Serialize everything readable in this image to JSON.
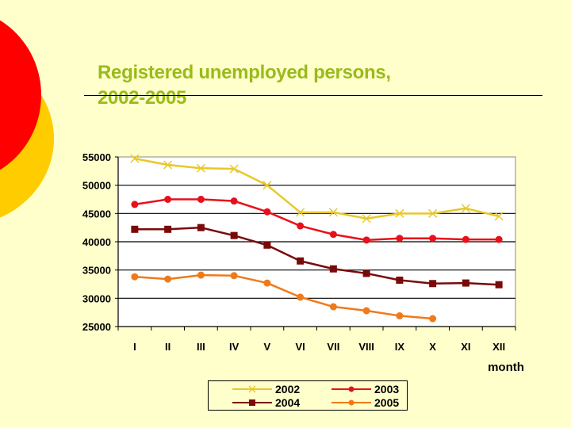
{
  "slide": {
    "title_line1": "Registered unemployed persons,",
    "title_line2": "2002-2005",
    "background_color": "#FFFFCC",
    "title_color": "#9ABB1A",
    "decor": {
      "circle_red": "#FF0000",
      "circle_gold": "#FFCC00"
    }
  },
  "chart_data": {
    "type": "line",
    "title": "Registered unemployed persons, 2002-2005",
    "xlabel": "month",
    "ylabel": "",
    "categories": [
      "I",
      "II",
      "III",
      "IV",
      "V",
      "VI",
      "VII",
      "VIII",
      "IX",
      "X",
      "XI",
      "XII"
    ],
    "ylim": [
      25000,
      55000
    ],
    "yticks": [
      25000,
      30000,
      35000,
      40000,
      45000,
      50000,
      55000
    ],
    "ytick_labels": [
      "25000",
      "30000",
      "35000",
      "40000",
      "45000",
      "50000",
      "55000"
    ],
    "grid": true,
    "legend_position": "bottom",
    "series": [
      {
        "name": "2002",
        "color": "#E8C82A",
        "marker": "x",
        "values": [
          54700,
          53600,
          53000,
          52900,
          50000,
          45200,
          45200,
          44100,
          45000,
          45000,
          45900,
          44500
        ]
      },
      {
        "name": "2003",
        "color": "#E8101A",
        "marker": "circle",
        "values": [
          46600,
          47500,
          47500,
          47200,
          45300,
          42800,
          41300,
          40300,
          40600,
          40600,
          40400,
          40400
        ]
      },
      {
        "name": "2004",
        "color": "#7A0A0A",
        "marker": "square",
        "values": [
          42200,
          42200,
          42500,
          41100,
          39400,
          36600,
          35200,
          34400,
          33200,
          32600,
          32700,
          32400
        ]
      },
      {
        "name": "2005",
        "color": "#F07A1A",
        "marker": "circle",
        "values": [
          33800,
          33400,
          34100,
          34000,
          32700,
          30200,
          28500,
          27800,
          26900,
          26400,
          null,
          null
        ]
      }
    ]
  },
  "legend": {
    "items": [
      {
        "label": "2002"
      },
      {
        "label": "2003"
      },
      {
        "label": "2004"
      },
      {
        "label": "2005"
      }
    ]
  }
}
